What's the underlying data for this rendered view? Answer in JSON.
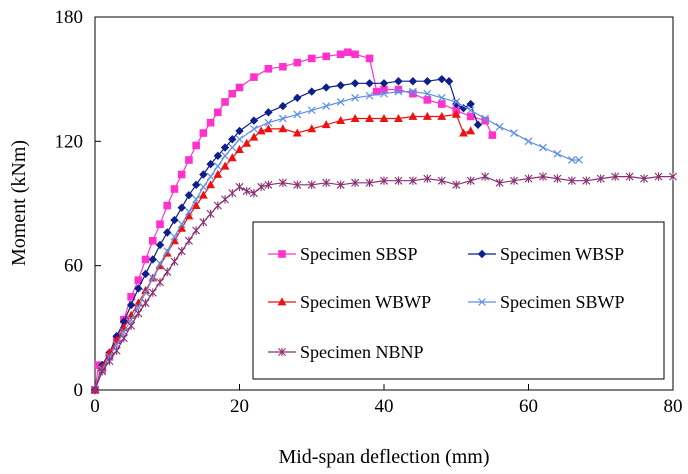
{
  "chart_data": {
    "type": "line",
    "xlabel": "Mid-span deflection (mm)",
    "ylabel": "Moment (kNm)",
    "xlim": [
      0,
      80
    ],
    "ylim": [
      0,
      180
    ],
    "xticks": [
      0,
      20,
      40,
      60,
      80
    ],
    "yticks": [
      0,
      60,
      120,
      180
    ],
    "grid": false,
    "legend_position": "bottom-right",
    "series": [
      {
        "name": "Specimen SBSP",
        "color": "#ff33cc",
        "marker": "square",
        "x": [
          0,
          0.5,
          1,
          2,
          3,
          4,
          5,
          6,
          7,
          8,
          9,
          10,
          11,
          12,
          13,
          14,
          15,
          16,
          17,
          18,
          19,
          20,
          22,
          24,
          26,
          28,
          30,
          32,
          34,
          35,
          36,
          38,
          39,
          40,
          42,
          44,
          46,
          48,
          50,
          52,
          54,
          55
        ],
        "y": [
          0,
          12,
          10,
          16,
          24,
          34,
          45,
          53,
          63,
          72,
          80,
          89,
          97,
          104,
          111,
          118,
          124,
          129,
          134,
          139,
          143,
          146,
          151,
          155,
          156,
          158,
          160,
          161,
          162,
          163,
          162,
          160,
          144,
          145,
          145,
          143,
          140,
          138,
          135,
          132,
          130,
          123
        ]
      },
      {
        "name": "Specimen WBSP",
        "color": "#0d1f8a",
        "marker": "diamond",
        "x": [
          0,
          1,
          2,
          3,
          4,
          5,
          6,
          7,
          8,
          9,
          10,
          11,
          12,
          13,
          14,
          15,
          16,
          17,
          18,
          19,
          20,
          22,
          24,
          26,
          28,
          30,
          32,
          34,
          36,
          38,
          40,
          42,
          44,
          46,
          48,
          49,
          50,
          51,
          52,
          53
        ],
        "y": [
          0,
          12,
          18,
          26,
          33,
          41,
          49,
          56,
          63,
          70,
          76,
          82,
          88,
          94,
          99,
          104,
          109,
          113,
          117,
          121,
          125,
          130,
          134,
          137,
          141,
          144,
          146,
          147,
          148,
          148,
          148,
          149,
          149,
          149,
          150,
          149,
          138,
          136,
          138,
          128
        ]
      },
      {
        "name": "Specimen WBWP",
        "color": "#ee1111",
        "marker": "triangle",
        "x": [
          0,
          1,
          2,
          3,
          4,
          5,
          6,
          7,
          8,
          9,
          10,
          11,
          12,
          13,
          14,
          15,
          16,
          17,
          18,
          19,
          20,
          21,
          22,
          23,
          24,
          26,
          28,
          30,
          32,
          34,
          36,
          38,
          40,
          42,
          44,
          46,
          48,
          50,
          51,
          52
        ],
        "y": [
          0,
          11,
          18,
          24,
          30,
          36,
          42,
          48,
          54,
          60,
          66,
          72,
          78,
          84,
          89,
          94,
          99,
          104,
          108,
          112,
          116,
          119,
          122,
          125,
          126,
          126,
          124,
          126,
          128,
          130,
          131,
          131,
          131,
          131,
          132,
          132,
          132,
          133,
          124,
          125
        ]
      },
      {
        "name": "Specimen SBWP",
        "color": "#5f8fe8",
        "marker": "x",
        "x": [
          0,
          1,
          2,
          3,
          4,
          5,
          6,
          7,
          8,
          9,
          10,
          11,
          12,
          13,
          14,
          15,
          16,
          17,
          18,
          19,
          20,
          22,
          24,
          26,
          28,
          30,
          32,
          34,
          36,
          38,
          40,
          42,
          44,
          46,
          48,
          50,
          52,
          54,
          56,
          58,
          60,
          62,
          64,
          66,
          67
        ],
        "y": [
          0,
          10,
          16,
          22,
          28,
          34,
          40,
          47,
          54,
          61,
          67,
          74,
          80,
          86,
          92,
          98,
          103,
          108,
          113,
          117,
          121,
          126,
          129,
          131,
          133,
          135,
          137,
          139,
          141,
          142,
          143,
          144,
          144,
          143,
          141,
          139,
          135,
          131,
          127,
          124,
          120,
          117,
          114,
          111,
          111
        ]
      },
      {
        "name": "Specimen NBNP",
        "color": "#8a2f73",
        "marker": "star",
        "x": [
          0,
          1,
          2,
          3,
          4,
          5,
          6,
          7,
          8,
          9,
          10,
          11,
          12,
          13,
          14,
          15,
          16,
          17,
          18,
          19,
          20,
          21,
          22,
          23,
          24,
          26,
          28,
          30,
          32,
          34,
          36,
          38,
          40,
          42,
          44,
          46,
          48,
          50,
          52,
          54,
          56,
          58,
          60,
          62,
          64,
          66,
          68,
          70,
          72,
          74,
          76,
          78,
          80
        ],
        "y": [
          0,
          9,
          14,
          19,
          25,
          31,
          37,
          42,
          47,
          52,
          57,
          62,
          67,
          72,
          77,
          81,
          85,
          89,
          92,
          95,
          98,
          96,
          95,
          98,
          99,
          100,
          99,
          99,
          100,
          99,
          100,
          100,
          101,
          101,
          101,
          102,
          101,
          99,
          101,
          103,
          100,
          101,
          102,
          103,
          102,
          101,
          101,
          102,
          103,
          103,
          102,
          103,
          103
        ]
      }
    ]
  }
}
